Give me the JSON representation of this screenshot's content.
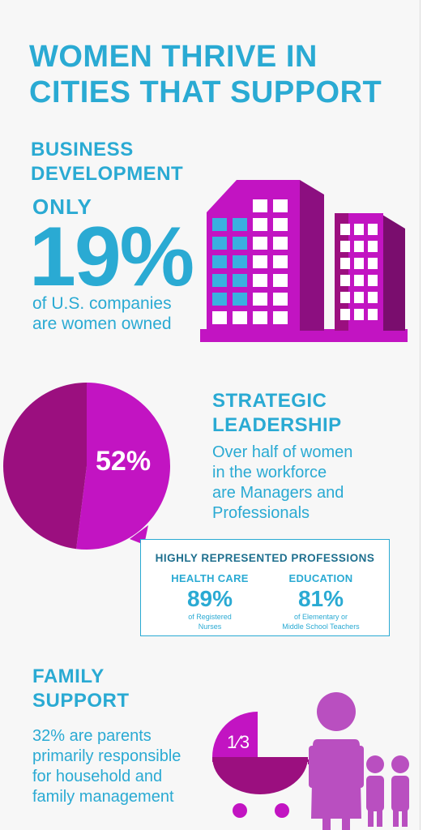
{
  "title": {
    "line1": "WOMEN THRIVE IN",
    "line2": "CITIES THAT SUPPORT"
  },
  "business": {
    "heading1": "BUSINESS",
    "heading2": "DEVELOPMENT",
    "only": "ONLY",
    "stat": "19%",
    "sub1": "of U.S. companies",
    "sub2": "are women owned"
  },
  "leadership": {
    "heading1": "STRATEGIC",
    "heading2": "LEADERSHIP",
    "pie_value": "52%",
    "pie_fraction": 0.52,
    "sub1": "Over half of women",
    "sub2": "in the workforce",
    "sub3": "are Managers and",
    "sub4": "Professionals"
  },
  "professions": {
    "title": "HIGHLY REPRESENTED PROFESSIONS",
    "items": [
      {
        "header": "HEALTH CARE",
        "value": "89%",
        "desc1": "of Registered",
        "desc2": "Nurses"
      },
      {
        "header": "EDUCATION",
        "value": "81%",
        "desc1": "of Elementary or",
        "desc2": "Middle School Teachers"
      }
    ]
  },
  "family": {
    "heading1": "FAMILY",
    "heading2": "SUPPORT",
    "sub1": "32% are parents",
    "sub2": "primarily responsible",
    "sub3": "for household and",
    "sub4": "family management",
    "fraction": "1⁄3"
  },
  "icons": [
    "building-icon",
    "pie-chart",
    "stroller-icon",
    "woman-icon",
    "children-icon"
  ],
  "colors": {
    "blue": "#2aaad3",
    "magenta": "#c214c2",
    "dark_magenta": "#9b0f7f",
    "purple": "#b94fc0"
  }
}
